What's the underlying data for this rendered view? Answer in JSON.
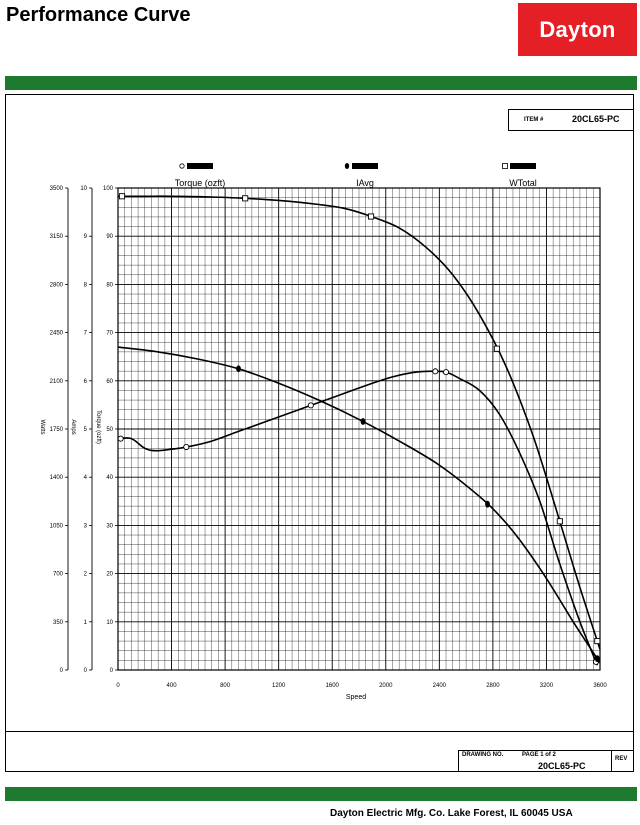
{
  "header": {
    "title": "Performance Curve",
    "logo_text": "Dayton"
  },
  "item": {
    "label": "ITEM #",
    "value": "20CL65-PC"
  },
  "title_block": {
    "drawing_no_label": "DRAWING NO.",
    "page_label": "PAGE 1 of 2",
    "rev_label": "REV",
    "drawing_no": "20CL65-PC"
  },
  "footer": {
    "text": "Dayton Electric Mfg. Co.  Lake Forest, IL  60045  USA"
  },
  "colors": {
    "brand_red": "#e41f26",
    "band_green": "#1e7a2e"
  },
  "chart_data": {
    "type": "line",
    "title": "",
    "xlabel": "Speed",
    "xlim": [
      0,
      3600
    ],
    "x_ticks": [
      "0",
      "400",
      "800",
      "1200",
      "1600",
      "2000",
      "2400",
      "2800",
      "3200",
      "3600"
    ],
    "axes": [
      {
        "label": "Watts",
        "range": [
          0,
          3500
        ],
        "ticks": [
          "0",
          "350",
          "700",
          "1050",
          "1400",
          "1750",
          "2100",
          "2450",
          "2800",
          "3150",
          "3500"
        ]
      },
      {
        "label": "Amps",
        "range": [
          0,
          10
        ],
        "ticks": [
          "0",
          "1",
          "2",
          "3",
          "4",
          "5",
          "6",
          "7",
          "8",
          "9",
          "10"
        ]
      },
      {
        "label": "Torque (ozft)",
        "range": [
          0,
          100
        ],
        "ticks": [
          "0",
          "10",
          "20",
          "30",
          "40",
          "50",
          "60",
          "70",
          "80",
          "90",
          "100"
        ]
      }
    ],
    "legend": {
      "placement": "top",
      "entries": [
        {
          "marker": "open-circle",
          "label": "Torque (ozft)"
        },
        {
          "marker": "filled-diamond",
          "label": "IAvg"
        },
        {
          "marker": "open-square",
          "label": "WTotal"
        }
      ]
    },
    "grid": true,
    "series": [
      {
        "name": "Torque (ozft)",
        "axis": "Torque (ozft)",
        "marker": "open-circle",
        "x": [
          0,
          100,
          200,
          280,
          400,
          520,
          700,
          900,
          1100,
          1300,
          1450,
          1600,
          1750,
          1900,
          2050,
          2200,
          2350,
          2450,
          2550,
          2700,
          2850,
          3000,
          3150,
          3300,
          3450,
          3580
        ],
        "y": [
          48,
          48,
          46,
          45.5,
          45.8,
          46.3,
          47.5,
          49.5,
          51.5,
          53.5,
          55,
          56.5,
          58,
          59.5,
          60.8,
          61.7,
          62,
          61.8,
          60.5,
          58,
          53,
          45,
          35,
          22,
          10,
          1
        ],
        "markers_at": [
          20,
          510,
          1440,
          2370,
          2450,
          3570
        ]
      },
      {
        "name": "IAvg",
        "axis": "Amps",
        "marker": "filled-diamond",
        "x": [
          0,
          300,
          600,
          900,
          1200,
          1500,
          1800,
          2100,
          2400,
          2700,
          2850,
          3000,
          3200,
          3400,
          3600
        ],
        "y": [
          6.7,
          6.6,
          6.45,
          6.25,
          5.95,
          5.6,
          5.2,
          4.75,
          4.25,
          3.6,
          3.2,
          2.7,
          1.9,
          1.0,
          0.15
        ],
        "markers_at": [
          900,
          1830,
          2760,
          3580
        ]
      },
      {
        "name": "WTotal",
        "axis": "Watts",
        "marker": "open-square",
        "x": [
          0,
          200,
          400,
          700,
          950,
          1200,
          1500,
          1700,
          1900,
          2100,
          2300,
          2500,
          2700,
          2900,
          3100,
          3300,
          3450,
          3600
        ],
        "y": [
          3440,
          3440,
          3440,
          3435,
          3425,
          3410,
          3380,
          3350,
          3290,
          3210,
          3070,
          2870,
          2580,
          2200,
          1700,
          1080,
          600,
          150
        ],
        "markers_at": [
          30,
          950,
          1890,
          2830,
          3300,
          3580
        ]
      }
    ]
  }
}
